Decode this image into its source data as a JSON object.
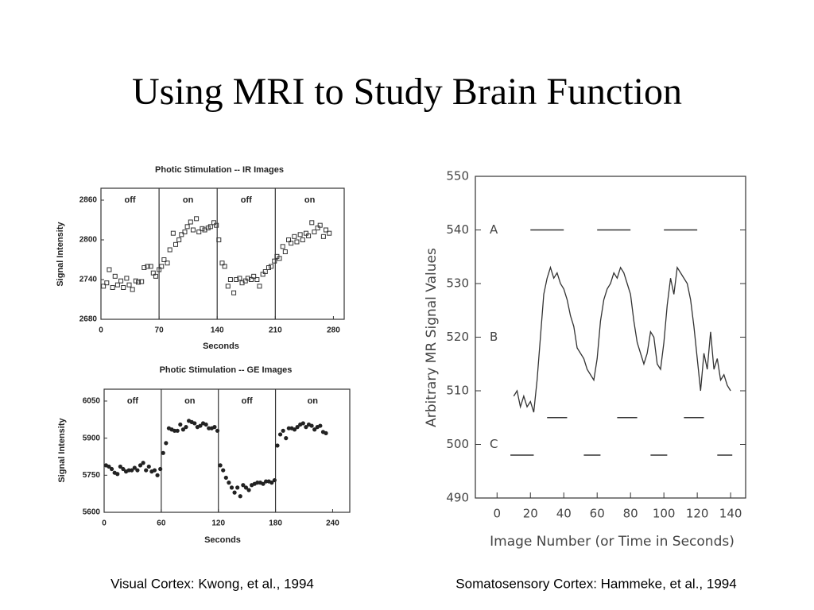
{
  "title": "Using MRI to Study Brain Function",
  "captions": [
    "Visual Cortex: Kwong, et al., 1994",
    "Somatosensory Cortex: Hammeke, et al., 1994"
  ],
  "chart_data": [
    {
      "type": "scatter",
      "title": "Photic Stimulation -- IR Images",
      "x_label": "Seconds",
      "y_label": "Signal Intensity",
      "marker": "square",
      "color": "#333333",
      "xlim": [
        0,
        293
      ],
      "xticks": [
        0,
        70,
        140,
        210,
        280
      ],
      "ylim": [
        2680,
        2878
      ],
      "yticks": [
        2680,
        2740,
        2800,
        2860
      ],
      "vlines": [
        70,
        140,
        210
      ],
      "phases": [
        "off",
        "on",
        "off",
        "on"
      ],
      "x": [
        3,
        7,
        10,
        14,
        17,
        20,
        24,
        27,
        31,
        34,
        38,
        42,
        45,
        49,
        52,
        56,
        60,
        63,
        66,
        70,
        73,
        76,
        80,
        83,
        87,
        90,
        94,
        97,
        101,
        104,
        108,
        111,
        115,
        118,
        122,
        125,
        129,
        132,
        136,
        139,
        142,
        146,
        149,
        153,
        156,
        160,
        163,
        167,
        170,
        174,
        177,
        181,
        184,
        188,
        191,
        195,
        198,
        202,
        205,
        209,
        212,
        215,
        219,
        222,
        226,
        229,
        233,
        236,
        240,
        243,
        247,
        250,
        254,
        257,
        261,
        264,
        268,
        271,
        275
      ],
      "values": [
        2730,
        2735,
        2755,
        2728,
        2745,
        2732,
        2738,
        2728,
        2742,
        2732,
        2725,
        2738,
        2736,
        2737,
        2758,
        2760,
        2760,
        2750,
        2745,
        2755,
        2760,
        2770,
        2765,
        2785,
        2810,
        2793,
        2800,
        2808,
        2812,
        2820,
        2827,
        2815,
        2832,
        2812,
        2817,
        2815,
        2818,
        2820,
        2826,
        2822,
        2800,
        2765,
        2760,
        2730,
        2740,
        2720,
        2740,
        2742,
        2735,
        2738,
        2742,
        2740,
        2745,
        2740,
        2730,
        2748,
        2752,
        2758,
        2760,
        2768,
        2775,
        2772,
        2790,
        2782,
        2800,
        2795,
        2805,
        2797,
        2808,
        2800,
        2810,
        2806,
        2826,
        2812,
        2818,
        2822,
        2805,
        2815,
        2810
      ]
    },
    {
      "type": "scatter",
      "title": "Photic Stimulation -- GE Images",
      "x_label": "Seconds",
      "y_label": "Signal Intensity",
      "marker": "dot",
      "color": "#222222",
      "xlim": [
        0,
        258
      ],
      "xticks": [
        0,
        60,
        120,
        180,
        240
      ],
      "ylim": [
        5600,
        6098
      ],
      "yticks": [
        5600,
        5750,
        5900,
        6050
      ],
      "vlines": [
        60,
        120,
        180
      ],
      "phases": [
        "off",
        "on",
        "off",
        "on"
      ],
      "x": [
        2,
        5,
        8,
        11,
        14,
        17,
        20,
        23,
        26,
        29,
        32,
        35,
        38,
        41,
        44,
        47,
        50,
        53,
        56,
        59,
        62,
        65,
        68,
        71,
        74,
        77,
        80,
        83,
        86,
        89,
        92,
        95,
        98,
        101,
        104,
        107,
        110,
        113,
        116,
        119,
        122,
        125,
        128,
        131,
        134,
        137,
        140,
        143,
        146,
        149,
        152,
        155,
        158,
        161,
        164,
        167,
        170,
        173,
        176,
        179,
        182,
        185,
        188,
        191,
        194,
        197,
        200,
        203,
        206,
        209,
        212,
        215,
        218,
        221,
        224,
        227,
        230,
        233
      ],
      "values": [
        5790,
        5785,
        5775,
        5760,
        5755,
        5785,
        5775,
        5765,
        5770,
        5770,
        5780,
        5770,
        5790,
        5800,
        5770,
        5785,
        5765,
        5770,
        5750,
        5775,
        5840,
        5880,
        5940,
        5935,
        5930,
        5930,
        5955,
        5935,
        5945,
        5970,
        5965,
        5960,
        5945,
        5950,
        5960,
        5955,
        5940,
        5940,
        5945,
        5930,
        5790,
        5770,
        5740,
        5720,
        5700,
        5680,
        5700,
        5665,
        5710,
        5700,
        5690,
        5710,
        5715,
        5720,
        5720,
        5715,
        5725,
        5725,
        5720,
        5730,
        5870,
        5915,
        5930,
        5900,
        5940,
        5940,
        5935,
        5945,
        5955,
        5960,
        5945,
        5955,
        5950,
        5935,
        5945,
        5950,
        5925,
        5920
      ]
    },
    {
      "type": "line",
      "x_label": "Image Number (or Time in Seconds)",
      "y_label": "Arbitrary MR Signal Values",
      "color": "#333333",
      "xlim": [
        -13,
        149
      ],
      "xticks": [
        0,
        20,
        40,
        60,
        80,
        100,
        120,
        140
      ],
      "ylim": [
        490,
        550
      ],
      "yticks": [
        490,
        500,
        510,
        520,
        530,
        540,
        550
      ],
      "annotations": [
        {
          "text": "A",
          "y": 540
        },
        {
          "text": "B",
          "y": 520
        },
        {
          "text": "C",
          "y": 500
        }
      ],
      "segments": [
        {
          "y": 540,
          "x": [
            20,
            40
          ]
        },
        {
          "y": 540,
          "x": [
            60,
            80
          ]
        },
        {
          "y": 540,
          "x": [
            100,
            120
          ]
        },
        {
          "y": 505,
          "x": [
            30,
            42
          ]
        },
        {
          "y": 505,
          "x": [
            72,
            84
          ]
        },
        {
          "y": 505,
          "x": [
            112,
            124
          ]
        },
        {
          "y": 498,
          "x": [
            8,
            22
          ]
        },
        {
          "y": 498,
          "x": [
            52,
            62
          ]
        },
        {
          "y": 498,
          "x": [
            92,
            102
          ]
        },
        {
          "y": 498,
          "x": [
            132,
            141
          ]
        }
      ],
      "x": [
        10,
        12,
        14,
        16,
        18,
        20,
        22,
        24,
        26,
        28,
        30,
        32,
        34,
        36,
        38,
        40,
        42,
        44,
        46,
        48,
        50,
        52,
        54,
        56,
        58,
        60,
        62,
        64,
        66,
        68,
        70,
        72,
        74,
        76,
        78,
        80,
        82,
        84,
        86,
        88,
        90,
        92,
        94,
        96,
        98,
        100,
        102,
        104,
        106,
        108,
        110,
        112,
        114,
        116,
        118,
        120,
        122,
        124,
        126,
        128,
        130,
        132,
        134,
        136,
        138,
        140
      ],
      "values": [
        509,
        510,
        507,
        509,
        507,
        508,
        506,
        512,
        520,
        528,
        531,
        533,
        531,
        532,
        530,
        529,
        527,
        524,
        522,
        518,
        517,
        516,
        514,
        513,
        512,
        516,
        523,
        527,
        529,
        530,
        532,
        531,
        533,
        532,
        530,
        528,
        523,
        519,
        517,
        515,
        517,
        521,
        520,
        515,
        514,
        519,
        526,
        531,
        528,
        533,
        532,
        531,
        530,
        527,
        522,
        516,
        510,
        517,
        514,
        521,
        514,
        516,
        512,
        513,
        511,
        510
      ]
    }
  ]
}
